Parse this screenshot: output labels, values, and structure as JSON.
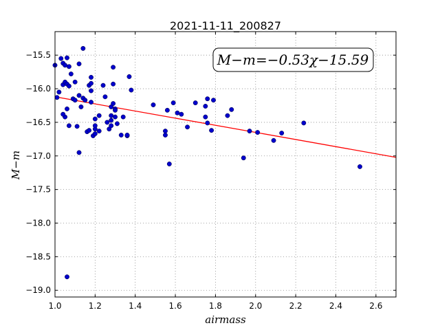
{
  "chart_data": {
    "type": "scatter",
    "title": "2021-11-11_200827",
    "xlabel": "airmass",
    "ylabel": "M−m",
    "xlim": [
      1.0,
      2.7
    ],
    "ylim": [
      -19.1,
      -15.15
    ],
    "grid": true,
    "x_ticks": [
      1.0,
      1.2,
      1.4,
      1.6,
      1.8,
      2.0,
      2.2,
      2.4,
      2.6
    ],
    "x_tick_labels": [
      "1.0",
      "1.2",
      "1.4",
      "1.6",
      "1.8",
      "2.0",
      "2.2",
      "2.4",
      "2.6"
    ],
    "y_ticks": [
      -15.5,
      -16.0,
      -16.5,
      -17.0,
      -17.5,
      -18.0,
      -18.5,
      -19.0
    ],
    "y_tick_labels": [
      "−15.5",
      "−16.0",
      "−16.5",
      "−17.0",
      "−17.5",
      "−18.0",
      "−18.5",
      "−19.0"
    ],
    "annotation": "M−m=−0.53χ−15.59",
    "annotation_position": "top-right",
    "fit_line": {
      "slope": -0.53,
      "intercept": -15.59,
      "color": "#ff0000"
    },
    "point_color": "#0000cc",
    "points": [
      [
        1.0,
        -15.65
      ],
      [
        1.02,
        -16.05
      ],
      [
        1.01,
        -16.13
      ],
      [
        1.03,
        -15.55
      ],
      [
        1.04,
        -15.62
      ],
      [
        1.05,
        -15.65
      ],
      [
        1.06,
        -15.54
      ],
      [
        1.07,
        -15.67
      ],
      [
        1.04,
        -15.94
      ],
      [
        1.05,
        -15.9
      ],
      [
        1.06,
        -15.93
      ],
      [
        1.07,
        -15.96
      ],
      [
        1.07,
        -16.55
      ],
      [
        1.08,
        -15.78
      ],
      [
        1.09,
        -16.15
      ],
      [
        1.1,
        -16.17
      ],
      [
        1.1,
        -15.9
      ],
      [
        1.11,
        -16.56
      ],
      [
        1.12,
        -15.63
      ],
      [
        1.12,
        -16.1
      ],
      [
        1.12,
        -16.95
      ],
      [
        1.13,
        -16.27
      ],
      [
        1.14,
        -15.4
      ],
      [
        1.14,
        -16.14
      ],
      [
        1.15,
        -16.17
      ],
      [
        1.16,
        -16.64
      ],
      [
        1.17,
        -15.95
      ],
      [
        1.17,
        -16.62
      ],
      [
        1.18,
        -15.83
      ],
      [
        1.18,
        -15.92
      ],
      [
        1.18,
        -16.03
      ],
      [
        1.18,
        -16.2
      ],
      [
        1.19,
        -16.7
      ],
      [
        1.2,
        -16.6
      ],
      [
        1.2,
        -16.45
      ],
      [
        1.2,
        -16.55
      ],
      [
        1.2,
        -16.67
      ],
      [
        1.22,
        -16.4
      ],
      [
        1.22,
        -16.63
      ],
      [
        1.24,
        -15.95
      ],
      [
        1.25,
        -16.12
      ],
      [
        1.26,
        -16.5
      ],
      [
        1.27,
        -16.6
      ],
      [
        1.28,
        -16.27
      ],
      [
        1.28,
        -16.4
      ],
      [
        1.28,
        -16.47
      ],
      [
        1.28,
        -16.55
      ],
      [
        1.29,
        -15.68
      ],
      [
        1.29,
        -15.93
      ],
      [
        1.29,
        -16.22
      ],
      [
        1.3,
        -16.3
      ],
      [
        1.3,
        -16.32
      ],
      [
        1.3,
        -16.42
      ],
      [
        1.31,
        -16.52
      ],
      [
        1.33,
        -16.69
      ],
      [
        1.34,
        -16.42
      ],
      [
        1.36,
        -16.7
      ],
      [
        1.36,
        -16.69
      ],
      [
        1.37,
        -15.82
      ],
      [
        1.38,
        -16.02
      ],
      [
        1.06,
        -16.3
      ],
      [
        1.05,
        -16.42
      ],
      [
        1.04,
        -16.38
      ],
      [
        1.06,
        -18.8
      ],
      [
        1.49,
        -16.24
      ],
      [
        1.55,
        -16.63
      ],
      [
        1.55,
        -16.69
      ],
      [
        1.56,
        -16.32
      ],
      [
        1.57,
        -17.12
      ],
      [
        1.59,
        -16.21
      ],
      [
        1.61,
        -16.36
      ],
      [
        1.63,
        -16.38
      ],
      [
        1.66,
        -16.57
      ],
      [
        1.7,
        -16.21
      ],
      [
        1.75,
        -16.26
      ],
      [
        1.75,
        -16.42
      ],
      [
        1.76,
        -16.15
      ],
      [
        1.76,
        -16.51
      ],
      [
        1.78,
        -16.62
      ],
      [
        1.79,
        -16.17
      ],
      [
        1.86,
        -16.4
      ],
      [
        1.88,
        -16.31
      ],
      [
        1.94,
        -17.03
      ],
      [
        1.97,
        -16.63
      ],
      [
        2.01,
        -16.65
      ],
      [
        2.09,
        -16.77
      ],
      [
        2.13,
        -16.66
      ],
      [
        2.24,
        -16.51
      ],
      [
        2.52,
        -17.16
      ]
    ]
  }
}
